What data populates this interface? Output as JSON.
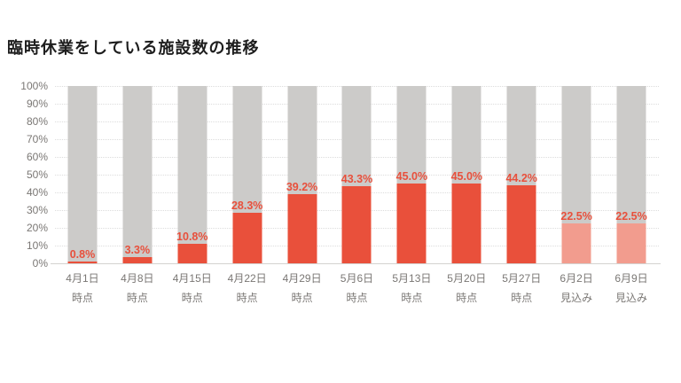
{
  "chart_data": {
    "type": "bar",
    "stacked": true,
    "title": "臨時休業をしている施設数の推移",
    "stack_total": 100,
    "ylim": [
      0,
      100
    ],
    "grid": "dotted horizontal",
    "legend": "none",
    "y_axis": {
      "ticks_top_to_bottom": [
        "100%",
        "90%",
        "80%",
        "70%",
        "60%",
        "50%",
        "40%",
        "30%",
        "20%",
        "10%",
        "0%"
      ]
    },
    "bars": [
      {
        "date": "4月1日",
        "note": "時点",
        "value": 0.8,
        "label": "0.8%",
        "forecast": false
      },
      {
        "date": "4月8日",
        "note": "時点",
        "value": 3.3,
        "label": "3.3%",
        "forecast": false
      },
      {
        "date": "4月15日",
        "note": "時点",
        "value": 10.8,
        "label": "10.8%",
        "forecast": false
      },
      {
        "date": "4月22日",
        "note": "時点",
        "value": 28.3,
        "label": "28.3%",
        "forecast": false
      },
      {
        "date": "4月29日",
        "note": "時点",
        "value": 39.2,
        "label": "39.2%",
        "forecast": false
      },
      {
        "date": "5月6日",
        "note": "時点",
        "value": 43.3,
        "label": "43.3%",
        "forecast": false
      },
      {
        "date": "5月13日",
        "note": "時点",
        "value": 45.0,
        "label": "45.0%",
        "forecast": false
      },
      {
        "date": "5月20日",
        "note": "時点",
        "value": 45.0,
        "label": "45.0%",
        "forecast": false
      },
      {
        "date": "5月27日",
        "note": "時点",
        "value": 44.2,
        "label": "44.2%",
        "forecast": false
      },
      {
        "date": "6月2日",
        "note": "見込み",
        "value": 22.5,
        "label": "22.5%",
        "forecast": true
      },
      {
        "date": "6月9日",
        "note": "見込み",
        "value": 22.5,
        "label": "22.5%",
        "forecast": true
      }
    ],
    "colors": {
      "actual": "#e9503b",
      "forecast": "#f29c8e",
      "remainder": "#cccbc9",
      "data_label": "#e8503c",
      "axis_text": "#7a7774",
      "gridline": "#dcdcdc",
      "axis_line": "#d4d2d0",
      "title": "#1e1e1e"
    }
  }
}
